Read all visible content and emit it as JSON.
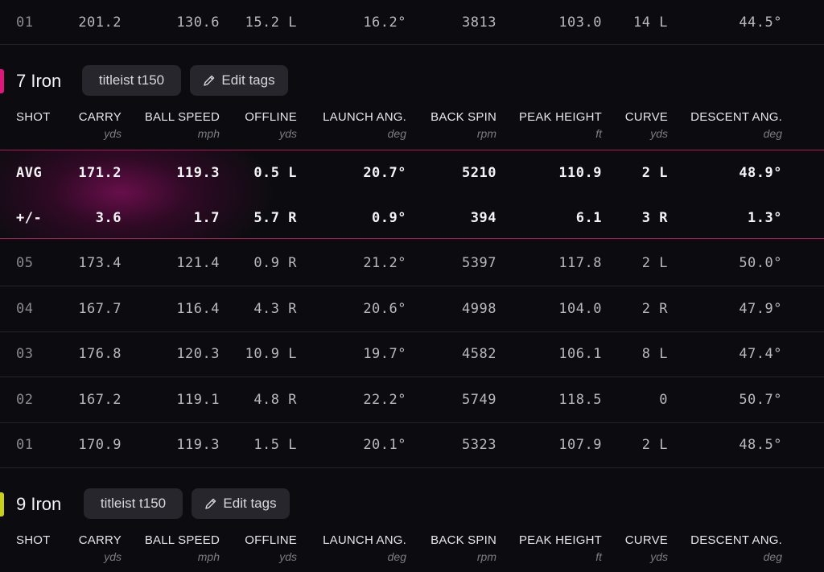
{
  "columns": [
    {
      "label": "SHOT",
      "unit": ""
    },
    {
      "label": "CARRY",
      "unit": "yds"
    },
    {
      "label": "BALL SPEED",
      "unit": "mph"
    },
    {
      "label": "OFFLINE",
      "unit": "yds"
    },
    {
      "label": "LAUNCH ANG.",
      "unit": "deg"
    },
    {
      "label": "BACK SPIN",
      "unit": "rpm"
    },
    {
      "label": "PEAK HEIGHT",
      "unit": "ft"
    },
    {
      "label": "CURVE",
      "unit": "yds"
    },
    {
      "label": "DESCENT ANG.",
      "unit": "deg"
    }
  ],
  "prev_club": {
    "last_row": [
      "01",
      "201.2",
      "130.6",
      "15.2 L",
      "16.2°",
      "3813",
      "103.0",
      "14 L",
      "44.5°"
    ]
  },
  "club_7iron": {
    "name": "7 Iron",
    "accent": "#e0177a",
    "tag": "titleist t150",
    "edit_label": "Edit tags",
    "avg": [
      "AVG",
      "171.2",
      "119.3",
      "0.5 L",
      "20.7°",
      "5210",
      "110.9",
      "2 L",
      "48.9°"
    ],
    "dev": [
      "+/-",
      "3.6",
      "1.7",
      "5.7 R",
      "0.9°",
      "394",
      "6.1",
      "3 R",
      "1.3°"
    ],
    "shots": [
      [
        "05",
        "173.4",
        "121.4",
        "0.9 R",
        "21.2°",
        "5397",
        "117.8",
        "2 L",
        "50.0°"
      ],
      [
        "04",
        "167.7",
        "116.4",
        "4.3 R",
        "20.6°",
        "4998",
        "104.0",
        "2 R",
        "47.9°"
      ],
      [
        "03",
        "176.8",
        "120.3",
        "10.9 L",
        "19.7°",
        "4582",
        "106.1",
        "8 L",
        "47.4°"
      ],
      [
        "02",
        "167.2",
        "119.1",
        "4.8 R",
        "22.2°",
        "5749",
        "118.5",
        "0",
        "50.7°"
      ],
      [
        "01",
        "170.9",
        "119.3",
        "1.5 L",
        "20.1°",
        "5323",
        "107.9",
        "2 L",
        "48.5°"
      ]
    ]
  },
  "club_9iron": {
    "name": "9 Iron",
    "accent": "#c9d019",
    "tag": "titleist t150",
    "edit_label": "Edit tags"
  },
  "icons": {
    "edit": "pencil-icon"
  }
}
